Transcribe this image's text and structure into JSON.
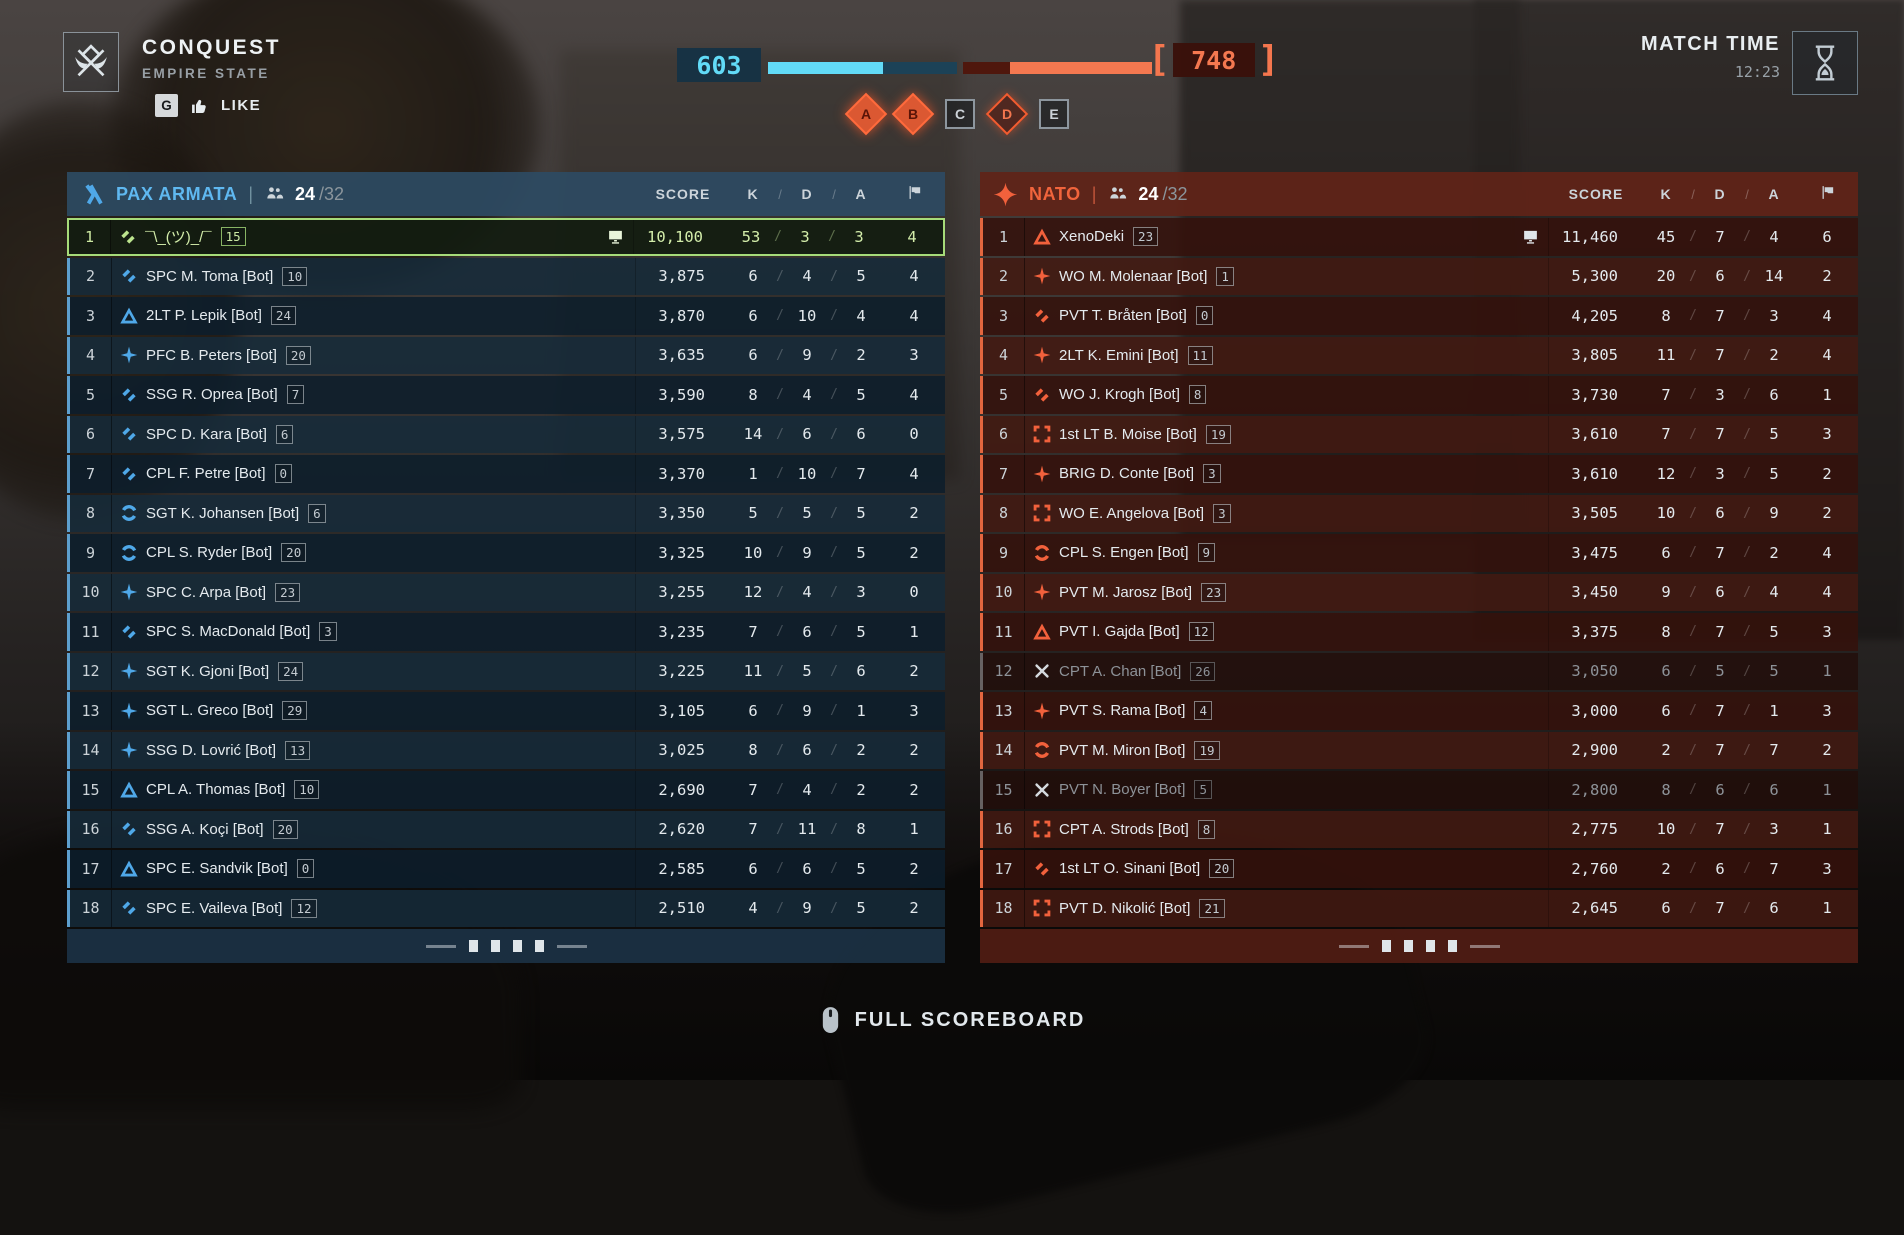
{
  "hud": {
    "mode": {
      "title": "CONQUEST",
      "map": "EMPIRE STATE",
      "key_hint": "G",
      "like_label": "LIKE"
    },
    "match_time": {
      "label": "MATCH TIME",
      "value": "12:23"
    },
    "score_bar": {
      "left_score": "603",
      "right_score": "748",
      "left_fill_pct": 61,
      "right_fill_pct": 75,
      "left_color": "#62dbf7",
      "right_color": "#f47850",
      "left_bracket": "[",
      "right_bracket": "]"
    },
    "objectives": [
      {
        "label": "A",
        "shape": "diamond",
        "state": "captured"
      },
      {
        "label": "B",
        "shape": "diamond",
        "state": "captured"
      },
      {
        "label": "C",
        "shape": "square",
        "state": "neutral"
      },
      {
        "label": "D",
        "shape": "diamond",
        "state": "contested"
      },
      {
        "label": "E",
        "shape": "square",
        "state": "neutral"
      }
    ],
    "footer_hint": {
      "label": "FULL SCOREBOARD",
      "icon": "mouse-middle-icon"
    }
  },
  "columns": {
    "score": "SCORE",
    "k": "K",
    "d": "D",
    "a": "A",
    "sep": "/",
    "flag_icon": "flag-icon"
  },
  "teams": [
    {
      "name": "PAX ARMATA",
      "players_current": "24",
      "players_max": "/32",
      "accent": "#4fa8e8",
      "logo_icon": "pax-armata-logo-icon",
      "players": [
        {
          "rank": "1",
          "class": "support",
          "name": "¯\\_(ツ)_/¯",
          "level": "15",
          "platform": "pc",
          "score": "10,100",
          "k": "53",
          "d": "3",
          "a": "3",
          "f": "4",
          "state": "self"
        },
        {
          "rank": "2",
          "class": "support",
          "name": "SPC M. Toma [Bot]",
          "level": "10",
          "platform": "",
          "score": "3,875",
          "k": "6",
          "d": "4",
          "a": "5",
          "f": "4",
          "state": ""
        },
        {
          "rank": "3",
          "class": "assault",
          "name": "2LT P. Lepik [Bot]",
          "level": "24",
          "platform": "",
          "score": "3,870",
          "k": "6",
          "d": "10",
          "a": "4",
          "f": "4",
          "state": ""
        },
        {
          "rank": "4",
          "class": "recon",
          "name": "PFC B. Peters [Bot]",
          "level": "20",
          "platform": "",
          "score": "3,635",
          "k": "6",
          "d": "9",
          "a": "2",
          "f": "3",
          "state": ""
        },
        {
          "rank": "5",
          "class": "support",
          "name": "SSG R. Oprea [Bot]",
          "level": "7",
          "platform": "",
          "score": "3,590",
          "k": "8",
          "d": "4",
          "a": "5",
          "f": "4",
          "state": ""
        },
        {
          "rank": "6",
          "class": "support",
          "name": "SPC D. Kara [Bot]",
          "level": "6",
          "platform": "",
          "score": "3,575",
          "k": "14",
          "d": "6",
          "a": "6",
          "f": "0",
          "state": ""
        },
        {
          "rank": "7",
          "class": "support",
          "name": "CPL F. Petre [Bot]",
          "level": "0",
          "platform": "",
          "score": "3,370",
          "k": "1",
          "d": "10",
          "a": "7",
          "f": "4",
          "state": ""
        },
        {
          "rank": "8",
          "class": "engineer",
          "name": "SGT K. Johansen [Bot]",
          "level": "6",
          "platform": "",
          "score": "3,350",
          "k": "5",
          "d": "5",
          "a": "5",
          "f": "2",
          "state": ""
        },
        {
          "rank": "9",
          "class": "engineer",
          "name": "CPL S. Ryder [Bot]",
          "level": "20",
          "platform": "",
          "score": "3,325",
          "k": "10",
          "d": "9",
          "a": "5",
          "f": "2",
          "state": ""
        },
        {
          "rank": "10",
          "class": "recon",
          "name": "SPC C. Arpa [Bot]",
          "level": "23",
          "platform": "",
          "score": "3,255",
          "k": "12",
          "d": "4",
          "a": "3",
          "f": "0",
          "state": ""
        },
        {
          "rank": "11",
          "class": "support",
          "name": "SPC S. MacDonald [Bot]",
          "level": "3",
          "platform": "",
          "score": "3,235",
          "k": "7",
          "d": "6",
          "a": "5",
          "f": "1",
          "state": ""
        },
        {
          "rank": "12",
          "class": "recon",
          "name": "SGT K. Gjoni [Bot]",
          "level": "24",
          "platform": "",
          "score": "3,225",
          "k": "11",
          "d": "5",
          "a": "6",
          "f": "2",
          "state": ""
        },
        {
          "rank": "13",
          "class": "recon",
          "name": "SGT L. Greco [Bot]",
          "level": "29",
          "platform": "",
          "score": "3,105",
          "k": "6",
          "d": "9",
          "a": "1",
          "f": "3",
          "state": ""
        },
        {
          "rank": "14",
          "class": "recon",
          "name": "SSG D. Lovrić [Bot]",
          "level": "13",
          "platform": "",
          "score": "3,025",
          "k": "8",
          "d": "6",
          "a": "2",
          "f": "2",
          "state": ""
        },
        {
          "rank": "15",
          "class": "assault",
          "name": "CPL A. Thomas [Bot]",
          "level": "10",
          "platform": "",
          "score": "2,690",
          "k": "7",
          "d": "4",
          "a": "2",
          "f": "2",
          "state": ""
        },
        {
          "rank": "16",
          "class": "support",
          "name": "SSG A. Koçi [Bot]",
          "level": "20",
          "platform": "",
          "score": "2,620",
          "k": "7",
          "d": "11",
          "a": "8",
          "f": "1",
          "state": ""
        },
        {
          "rank": "17",
          "class": "assault",
          "name": "SPC E. Sandvik [Bot]",
          "level": "0",
          "platform": "",
          "score": "2,585",
          "k": "6",
          "d": "6",
          "a": "5",
          "f": "2",
          "state": ""
        },
        {
          "rank": "18",
          "class": "support",
          "name": "SPC E. Vaileva [Bot]",
          "level": "12",
          "platform": "",
          "score": "2,510",
          "k": "4",
          "d": "9",
          "a": "5",
          "f": "2",
          "state": ""
        }
      ]
    },
    {
      "name": "NATO",
      "players_current": "24",
      "players_max": "/32",
      "accent": "#f2613c",
      "logo_icon": "nato-logo-icon",
      "players": [
        {
          "rank": "1",
          "class": "assault",
          "name": "XenoDeki",
          "level": "23",
          "platform": "pc",
          "score": "11,460",
          "k": "45",
          "d": "7",
          "a": "4",
          "f": "6",
          "state": ""
        },
        {
          "rank": "2",
          "class": "recon",
          "name": "WO M. Molenaar [Bot]",
          "level": "1",
          "platform": "",
          "score": "5,300",
          "k": "20",
          "d": "6",
          "a": "14",
          "f": "2",
          "state": ""
        },
        {
          "rank": "3",
          "class": "support",
          "name": "PVT T. Bråten [Bot]",
          "level": "0",
          "platform": "",
          "score": "4,205",
          "k": "8",
          "d": "7",
          "a": "3",
          "f": "4",
          "state": ""
        },
        {
          "rank": "4",
          "class": "recon",
          "name": "2LT K. Emini [Bot]",
          "level": "11",
          "platform": "",
          "score": "3,805",
          "k": "11",
          "d": "7",
          "a": "2",
          "f": "4",
          "state": ""
        },
        {
          "rank": "5",
          "class": "support",
          "name": "WO J. Krogh [Bot]",
          "level": "8",
          "platform": "",
          "score": "3,730",
          "k": "7",
          "d": "3",
          "a": "6",
          "f": "1",
          "state": ""
        },
        {
          "rank": "6",
          "class": "crosshair",
          "name": "1st LT B. Moise [Bot]",
          "level": "19",
          "platform": "",
          "score": "3,610",
          "k": "7",
          "d": "7",
          "a": "5",
          "f": "3",
          "state": ""
        },
        {
          "rank": "7",
          "class": "recon",
          "name": "BRIG D. Conte [Bot]",
          "level": "3",
          "platform": "",
          "score": "3,610",
          "k": "12",
          "d": "3",
          "a": "5",
          "f": "2",
          "state": ""
        },
        {
          "rank": "8",
          "class": "crosshair",
          "name": "WO E. Angelova [Bot]",
          "level": "3",
          "platform": "",
          "score": "3,505",
          "k": "10",
          "d": "6",
          "a": "9",
          "f": "2",
          "state": ""
        },
        {
          "rank": "9",
          "class": "engineer",
          "name": "CPL S. Engen [Bot]",
          "level": "9",
          "platform": "",
          "score": "3,475",
          "k": "6",
          "d": "7",
          "a": "2",
          "f": "4",
          "state": ""
        },
        {
          "rank": "10",
          "class": "recon",
          "name": "PVT M. Jarosz [Bot]",
          "level": "23",
          "platform": "",
          "score": "3,450",
          "k": "9",
          "d": "6",
          "a": "4",
          "f": "4",
          "state": ""
        },
        {
          "rank": "11",
          "class": "assault",
          "name": "PVT I. Gajda [Bot]",
          "level": "12",
          "platform": "",
          "score": "3,375",
          "k": "8",
          "d": "7",
          "a": "5",
          "f": "3",
          "state": ""
        },
        {
          "rank": "12",
          "class": "dead",
          "name": "CPT A. Chan [Bot]",
          "level": "26",
          "platform": "",
          "score": "3,050",
          "k": "6",
          "d": "5",
          "a": "5",
          "f": "1",
          "state": "dead"
        },
        {
          "rank": "13",
          "class": "recon",
          "name": "PVT S. Rama [Bot]",
          "level": "4",
          "platform": "",
          "score": "3,000",
          "k": "6",
          "d": "7",
          "a": "1",
          "f": "3",
          "state": ""
        },
        {
          "rank": "14",
          "class": "engineer",
          "name": "PVT M. Miron [Bot]",
          "level": "19",
          "platform": "",
          "score": "2,900",
          "k": "2",
          "d": "7",
          "a": "7",
          "f": "2",
          "state": ""
        },
        {
          "rank": "15",
          "class": "dead",
          "name": "PVT N. Boyer [Bot]",
          "level": "5",
          "platform": "",
          "score": "2,800",
          "k": "8",
          "d": "6",
          "a": "6",
          "f": "1",
          "state": "dead"
        },
        {
          "rank": "16",
          "class": "crosshair",
          "name": "CPT A. Strods [Bot]",
          "level": "8",
          "platform": "",
          "score": "2,775",
          "k": "10",
          "d": "7",
          "a": "3",
          "f": "1",
          "state": ""
        },
        {
          "rank": "17",
          "class": "support",
          "name": "1st LT O. Sinani [Bot]",
          "level": "20",
          "platform": "",
          "score": "2,760",
          "k": "2",
          "d": "6",
          "a": "7",
          "f": "3",
          "state": ""
        },
        {
          "rank": "18",
          "class": "crosshair",
          "name": "PVT D. Nikolić [Bot]",
          "level": "21",
          "platform": "",
          "score": "2,645",
          "k": "6",
          "d": "7",
          "a": "6",
          "f": "1",
          "state": ""
        }
      ]
    }
  ]
}
